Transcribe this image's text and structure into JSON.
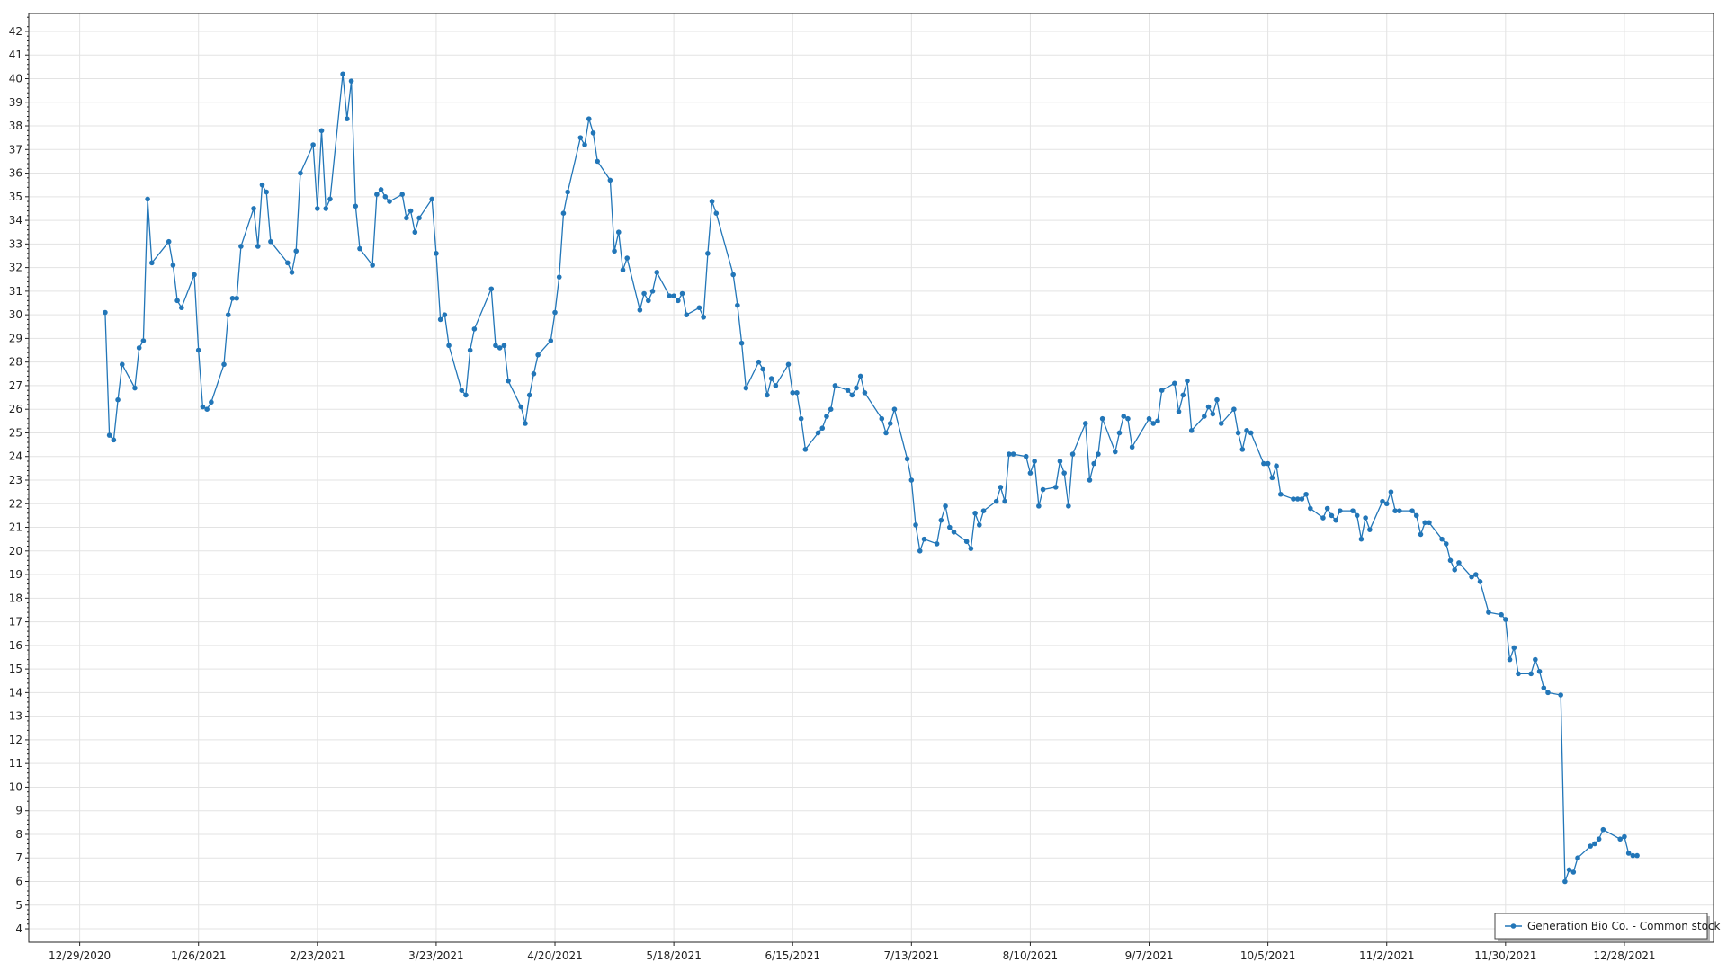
{
  "chart_data": {
    "type": "line",
    "title": "",
    "xlabel": "",
    "ylabel": "",
    "x_type": "date",
    "xlim": [
      "2020-12-17",
      "2022-01-18"
    ],
    "ylim": [
      3.43,
      42.76
    ],
    "y_ticks": [
      4,
      5,
      6,
      7,
      8,
      9,
      10,
      11,
      12,
      13,
      14,
      15,
      16,
      17,
      18,
      19,
      20,
      21,
      22,
      23,
      24,
      25,
      26,
      27,
      28,
      29,
      30,
      31,
      32,
      33,
      34,
      35,
      36,
      37,
      38,
      39,
      40,
      41,
      42
    ],
    "x_ticks": [
      "2020-12-29",
      "2021-01-26",
      "2021-02-23",
      "2021-03-23",
      "2021-04-20",
      "2021-05-18",
      "2021-06-15",
      "2021-07-13",
      "2021-08-10",
      "2021-09-07",
      "2021-10-05",
      "2021-11-02",
      "2021-11-30",
      "2021-12-28"
    ],
    "x_tick_labels": [
      "12/29/2020",
      "1/26/2021",
      "2/23/2021",
      "3/23/2021",
      "4/20/2021",
      "5/18/2021",
      "6/15/2021",
      "7/13/2021",
      "8/10/2021",
      "9/7/2021",
      "10/5/2021",
      "11/2/2021",
      "11/30/2021",
      "12/28/2021"
    ],
    "grid": true,
    "legend_position": "bottom-right",
    "series": [
      {
        "name": "Generation Bio Co. - Common stock",
        "color": "#2276b8",
        "marker": "circle",
        "points": [
          [
            "2021-01-04",
            30.1
          ],
          [
            "2021-01-05",
            24.9
          ],
          [
            "2021-01-06",
            24.7
          ],
          [
            "2021-01-07",
            26.4
          ],
          [
            "2021-01-08",
            27.9
          ],
          [
            "2021-01-11",
            26.9
          ],
          [
            "2021-01-12",
            28.6
          ],
          [
            "2021-01-13",
            28.9
          ],
          [
            "2021-01-14",
            34.9
          ],
          [
            "2021-01-15",
            32.2
          ],
          [
            "2021-01-19",
            33.1
          ],
          [
            "2021-01-20",
            32.1
          ],
          [
            "2021-01-21",
            30.6
          ],
          [
            "2021-01-22",
            30.3
          ],
          [
            "2021-01-25",
            31.7
          ],
          [
            "2021-01-26",
            28.5
          ],
          [
            "2021-01-27",
            26.1
          ],
          [
            "2021-01-28",
            26.0
          ],
          [
            "2021-01-29",
            26.3
          ],
          [
            "2021-02-01",
            27.9
          ],
          [
            "2021-02-02",
            30.0
          ],
          [
            "2021-02-03",
            30.7
          ],
          [
            "2021-02-04",
            30.7
          ],
          [
            "2021-02-05",
            32.9
          ],
          [
            "2021-02-08",
            34.5
          ],
          [
            "2021-02-09",
            32.9
          ],
          [
            "2021-02-10",
            35.5
          ],
          [
            "2021-02-11",
            35.2
          ],
          [
            "2021-02-12",
            33.1
          ],
          [
            "2021-02-16",
            32.2
          ],
          [
            "2021-02-17",
            31.8
          ],
          [
            "2021-02-18",
            32.7
          ],
          [
            "2021-02-19",
            36.0
          ],
          [
            "2021-02-22",
            37.2
          ],
          [
            "2021-02-23",
            34.5
          ],
          [
            "2021-02-24",
            37.8
          ],
          [
            "2021-02-25",
            34.5
          ],
          [
            "2021-02-26",
            34.9
          ],
          [
            "2021-03-01",
            40.2
          ],
          [
            "2021-03-02",
            38.3
          ],
          [
            "2021-03-03",
            39.9
          ],
          [
            "2021-03-04",
            34.6
          ],
          [
            "2021-03-05",
            32.8
          ],
          [
            "2021-03-08",
            32.1
          ],
          [
            "2021-03-09",
            35.1
          ],
          [
            "2021-03-10",
            35.3
          ],
          [
            "2021-03-11",
            35.0
          ],
          [
            "2021-03-12",
            34.8
          ],
          [
            "2021-03-15",
            35.1
          ],
          [
            "2021-03-16",
            34.1
          ],
          [
            "2021-03-17",
            34.4
          ],
          [
            "2021-03-18",
            33.5
          ],
          [
            "2021-03-19",
            34.1
          ],
          [
            "2021-03-22",
            34.9
          ],
          [
            "2021-03-23",
            32.6
          ],
          [
            "2021-03-24",
            29.8
          ],
          [
            "2021-03-25",
            30.0
          ],
          [
            "2021-03-26",
            28.7
          ],
          [
            "2021-03-29",
            26.8
          ],
          [
            "2021-03-30",
            26.6
          ],
          [
            "2021-03-31",
            28.5
          ],
          [
            "2021-04-01",
            29.4
          ],
          [
            "2021-04-05",
            31.1
          ],
          [
            "2021-04-06",
            28.7
          ],
          [
            "2021-04-07",
            28.6
          ],
          [
            "2021-04-08",
            28.7
          ],
          [
            "2021-04-09",
            27.2
          ],
          [
            "2021-04-12",
            26.1
          ],
          [
            "2021-04-13",
            25.4
          ],
          [
            "2021-04-14",
            26.6
          ],
          [
            "2021-04-15",
            27.5
          ],
          [
            "2021-04-16",
            28.3
          ],
          [
            "2021-04-19",
            28.9
          ],
          [
            "2021-04-20",
            30.1
          ],
          [
            "2021-04-21",
            31.6
          ],
          [
            "2021-04-22",
            34.3
          ],
          [
            "2021-04-23",
            35.2
          ],
          [
            "2021-04-26",
            37.5
          ],
          [
            "2021-04-27",
            37.2
          ],
          [
            "2021-04-28",
            38.3
          ],
          [
            "2021-04-29",
            37.7
          ],
          [
            "2021-04-30",
            36.5
          ],
          [
            "2021-05-03",
            35.7
          ],
          [
            "2021-05-04",
            32.7
          ],
          [
            "2021-05-05",
            33.5
          ],
          [
            "2021-05-06",
            31.9
          ],
          [
            "2021-05-07",
            32.4
          ],
          [
            "2021-05-10",
            30.2
          ],
          [
            "2021-05-11",
            30.9
          ],
          [
            "2021-05-12",
            30.6
          ],
          [
            "2021-05-13",
            31.0
          ],
          [
            "2021-05-14",
            31.8
          ],
          [
            "2021-05-17",
            30.8
          ],
          [
            "2021-05-18",
            30.8
          ],
          [
            "2021-05-19",
            30.6
          ],
          [
            "2021-05-20",
            30.9
          ],
          [
            "2021-05-21",
            30.0
          ],
          [
            "2021-05-24",
            30.3
          ],
          [
            "2021-05-25",
            29.9
          ],
          [
            "2021-05-26",
            32.6
          ],
          [
            "2021-05-27",
            34.8
          ],
          [
            "2021-05-28",
            34.3
          ],
          [
            "2021-06-01",
            31.7
          ],
          [
            "2021-06-02",
            30.4
          ],
          [
            "2021-06-03",
            28.8
          ],
          [
            "2021-06-04",
            26.9
          ],
          [
            "2021-06-07",
            28.0
          ],
          [
            "2021-06-08",
            27.7
          ],
          [
            "2021-06-09",
            26.6
          ],
          [
            "2021-06-10",
            27.3
          ],
          [
            "2021-06-11",
            27.0
          ],
          [
            "2021-06-14",
            27.9
          ],
          [
            "2021-06-15",
            26.7
          ],
          [
            "2021-06-16",
            26.7
          ],
          [
            "2021-06-17",
            25.6
          ],
          [
            "2021-06-18",
            24.3
          ],
          [
            "2021-06-21",
            25.0
          ],
          [
            "2021-06-22",
            25.2
          ],
          [
            "2021-06-23",
            25.7
          ],
          [
            "2021-06-24",
            26.0
          ],
          [
            "2021-06-25",
            27.0
          ],
          [
            "2021-06-28",
            26.8
          ],
          [
            "2021-06-29",
            26.6
          ],
          [
            "2021-06-30",
            26.9
          ],
          [
            "2021-07-01",
            27.4
          ],
          [
            "2021-07-02",
            26.7
          ],
          [
            "2021-07-06",
            25.6
          ],
          [
            "2021-07-07",
            25.0
          ],
          [
            "2021-07-08",
            25.4
          ],
          [
            "2021-07-09",
            26.0
          ],
          [
            "2021-07-12",
            23.9
          ],
          [
            "2021-07-13",
            23.0
          ],
          [
            "2021-07-14",
            21.1
          ],
          [
            "2021-07-15",
            20.0
          ],
          [
            "2021-07-16",
            20.5
          ],
          [
            "2021-07-19",
            20.3
          ],
          [
            "2021-07-20",
            21.3
          ],
          [
            "2021-07-21",
            21.9
          ],
          [
            "2021-07-22",
            21.0
          ],
          [
            "2021-07-23",
            20.8
          ],
          [
            "2021-07-26",
            20.4
          ],
          [
            "2021-07-27",
            20.1
          ],
          [
            "2021-07-28",
            21.6
          ],
          [
            "2021-07-29",
            21.1
          ],
          [
            "2021-07-30",
            21.7
          ],
          [
            "2021-08-02",
            22.1
          ],
          [
            "2021-08-03",
            22.7
          ],
          [
            "2021-08-04",
            22.1
          ],
          [
            "2021-08-05",
            24.1
          ],
          [
            "2021-08-06",
            24.1
          ],
          [
            "2021-08-09",
            24.0
          ],
          [
            "2021-08-10",
            23.3
          ],
          [
            "2021-08-11",
            23.8
          ],
          [
            "2021-08-12",
            21.9
          ],
          [
            "2021-08-13",
            22.6
          ],
          [
            "2021-08-16",
            22.7
          ],
          [
            "2021-08-17",
            23.8
          ],
          [
            "2021-08-18",
            23.3
          ],
          [
            "2021-08-19",
            21.9
          ],
          [
            "2021-08-20",
            24.1
          ],
          [
            "2021-08-23",
            25.4
          ],
          [
            "2021-08-24",
            23.0
          ],
          [
            "2021-08-25",
            23.7
          ],
          [
            "2021-08-26",
            24.1
          ],
          [
            "2021-08-27",
            25.6
          ],
          [
            "2021-08-30",
            24.2
          ],
          [
            "2021-08-31",
            25.0
          ],
          [
            "2021-09-01",
            25.7
          ],
          [
            "2021-09-02",
            25.6
          ],
          [
            "2021-09-03",
            24.4
          ],
          [
            "2021-09-07",
            25.6
          ],
          [
            "2021-09-08",
            25.4
          ],
          [
            "2021-09-09",
            25.5
          ],
          [
            "2021-09-10",
            26.8
          ],
          [
            "2021-09-13",
            27.1
          ],
          [
            "2021-09-14",
            25.9
          ],
          [
            "2021-09-15",
            26.6
          ],
          [
            "2021-09-16",
            27.2
          ],
          [
            "2021-09-17",
            25.1
          ],
          [
            "2021-09-20",
            25.7
          ],
          [
            "2021-09-21",
            26.1
          ],
          [
            "2021-09-22",
            25.8
          ],
          [
            "2021-09-23",
            26.4
          ],
          [
            "2021-09-24",
            25.4
          ],
          [
            "2021-09-27",
            26.0
          ],
          [
            "2021-09-28",
            25.0
          ],
          [
            "2021-09-29",
            24.3
          ],
          [
            "2021-09-30",
            25.1
          ],
          [
            "2021-10-01",
            25.0
          ],
          [
            "2021-10-04",
            23.7
          ],
          [
            "2021-10-05",
            23.7
          ],
          [
            "2021-10-06",
            23.1
          ],
          [
            "2021-10-07",
            23.6
          ],
          [
            "2021-10-08",
            22.4
          ],
          [
            "2021-10-11",
            22.2
          ],
          [
            "2021-10-12",
            22.2
          ],
          [
            "2021-10-13",
            22.2
          ],
          [
            "2021-10-14",
            22.4
          ],
          [
            "2021-10-15",
            21.8
          ],
          [
            "2021-10-18",
            21.4
          ],
          [
            "2021-10-19",
            21.8
          ],
          [
            "2021-10-20",
            21.5
          ],
          [
            "2021-10-21",
            21.3
          ],
          [
            "2021-10-22",
            21.7
          ],
          [
            "2021-10-25",
            21.7
          ],
          [
            "2021-10-26",
            21.5
          ],
          [
            "2021-10-27",
            20.5
          ],
          [
            "2021-10-28",
            21.4
          ],
          [
            "2021-10-29",
            20.9
          ],
          [
            "2021-11-01",
            22.1
          ],
          [
            "2021-11-02",
            22.0
          ],
          [
            "2021-11-03",
            22.5
          ],
          [
            "2021-11-04",
            21.7
          ],
          [
            "2021-11-05",
            21.7
          ],
          [
            "2021-11-08",
            21.7
          ],
          [
            "2021-11-09",
            21.5
          ],
          [
            "2021-11-10",
            20.7
          ],
          [
            "2021-11-11",
            21.2
          ],
          [
            "2021-11-12",
            21.2
          ],
          [
            "2021-11-15",
            20.5
          ],
          [
            "2021-11-16",
            20.3
          ],
          [
            "2021-11-17",
            19.6
          ],
          [
            "2021-11-18",
            19.2
          ],
          [
            "2021-11-19",
            19.5
          ],
          [
            "2021-11-22",
            18.9
          ],
          [
            "2021-11-23",
            19.0
          ],
          [
            "2021-11-24",
            18.7
          ],
          [
            "2021-11-26",
            17.4
          ],
          [
            "2021-11-29",
            17.3
          ],
          [
            "2021-11-30",
            17.1
          ],
          [
            "2021-12-01",
            15.4
          ],
          [
            "2021-12-02",
            15.9
          ],
          [
            "2021-12-03",
            14.8
          ],
          [
            "2021-12-06",
            14.8
          ],
          [
            "2021-12-07",
            15.4
          ],
          [
            "2021-12-08",
            14.9
          ],
          [
            "2021-12-09",
            14.2
          ],
          [
            "2021-12-10",
            14.0
          ],
          [
            "2021-12-13",
            13.9
          ],
          [
            "2021-12-14",
            6.0
          ],
          [
            "2021-12-15",
            6.5
          ],
          [
            "2021-12-16",
            6.4
          ],
          [
            "2021-12-17",
            7.0
          ],
          [
            "2021-12-20",
            7.5
          ],
          [
            "2021-12-21",
            7.6
          ],
          [
            "2021-12-22",
            7.8
          ],
          [
            "2021-12-23",
            8.2
          ],
          [
            "2021-12-27",
            7.8
          ],
          [
            "2021-12-28",
            7.9
          ],
          [
            "2021-12-29",
            7.2
          ],
          [
            "2021-12-30",
            7.1
          ],
          [
            "2021-12-31",
            7.1
          ]
        ]
      }
    ]
  }
}
